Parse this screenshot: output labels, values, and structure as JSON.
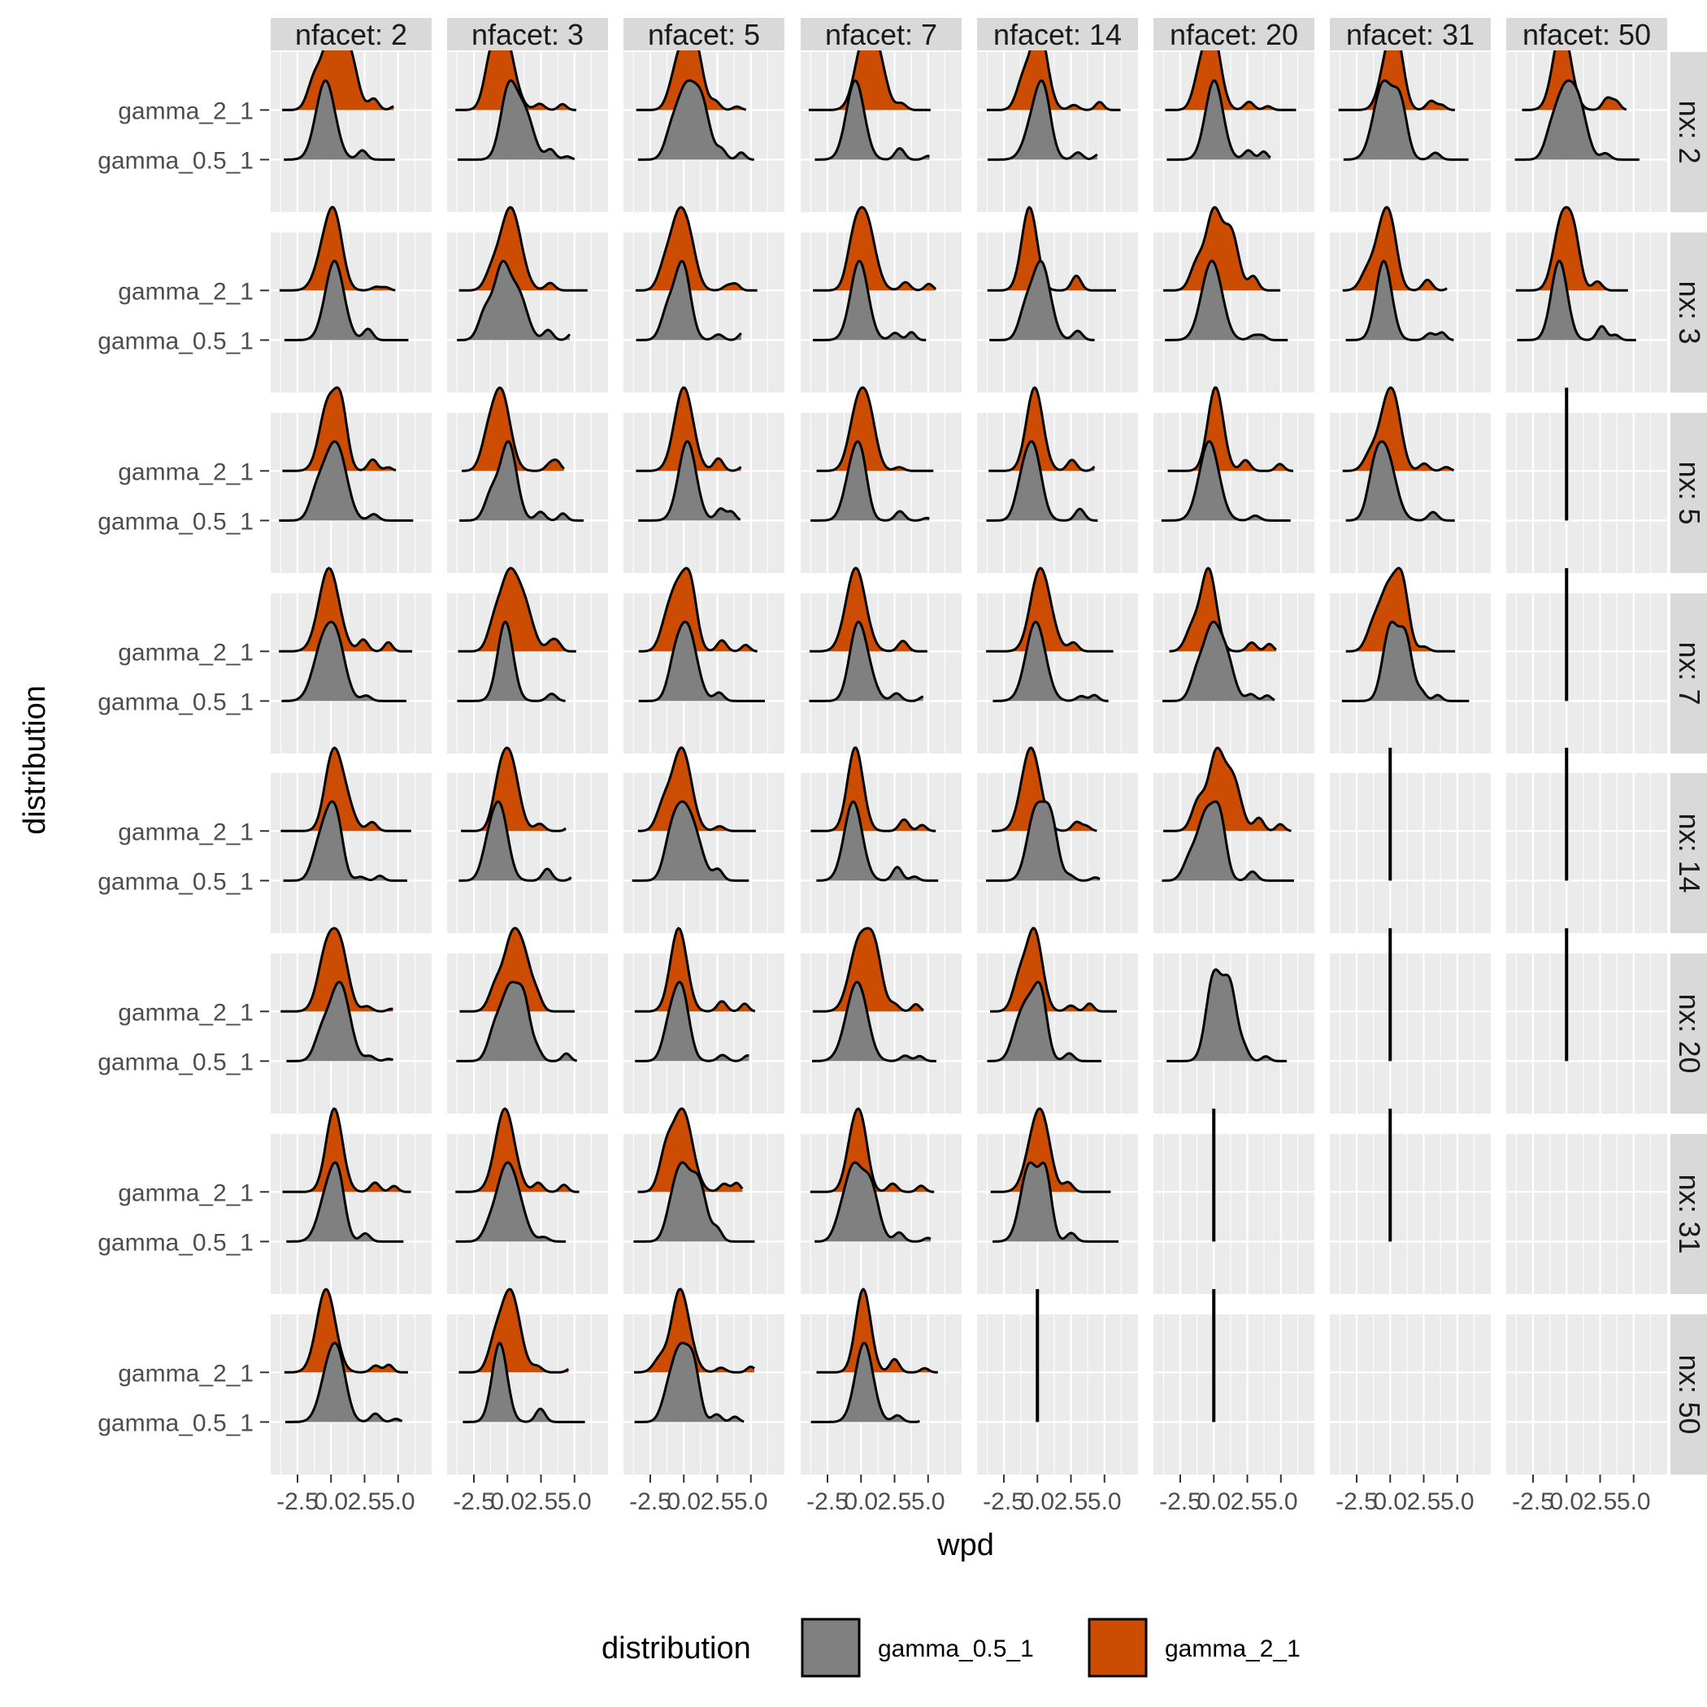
{
  "chart_data": {
    "type": "ridgeline-density-facet-grid",
    "xlabel": "wpd",
    "ylabel": "distribution",
    "x_ticks": [
      "-2.5",
      "0.0",
      "2.5",
      "5.0"
    ],
    "x_tick_values": [
      -2.5,
      0.0,
      2.5,
      5.0
    ],
    "xlim": [
      -4.5,
      7.5
    ],
    "y_categories": [
      "gamma_2_1",
      "gamma_0.5_1"
    ],
    "col_facet_labels": [
      "nfacet: 2",
      "nfacet: 3",
      "nfacet: 5",
      "nfacet: 7",
      "nfacet: 14",
      "nfacet: 20",
      "nfacet: 31",
      "nfacet: 50"
    ],
    "row_facet_labels": [
      "nx: 2",
      "nx: 3",
      "nx: 5",
      "nx: 7",
      "nx: 14",
      "nx: 20",
      "nx: 31",
      "nx: 50"
    ],
    "legend": {
      "title": "distribution",
      "position": "bottom",
      "entries": [
        {
          "label": "gamma_0.5_1",
          "color": "#808080"
        },
        {
          "label": "gamma_2_1",
          "color": "#CC4C02"
        }
      ]
    },
    "series_colors": {
      "gamma_2_1": "#CC4C02",
      "gamma_0.5_1": "#808080"
    },
    "grid": true,
    "panel_status_note_codes": {
      "F": "full density ridges",
      "L": "single-value vertical line",
      "G": "only gamma_0.5_1 density",
      "E": "empty"
    },
    "panel_status": [
      [
        "F",
        "F",
        "F",
        "F",
        "F",
        "F",
        "F",
        "F"
      ],
      [
        "F",
        "F",
        "F",
        "F",
        "F",
        "F",
        "F",
        "F"
      ],
      [
        "F",
        "F",
        "F",
        "F",
        "F",
        "F",
        "F",
        "L"
      ],
      [
        "F",
        "F",
        "F",
        "F",
        "F",
        "F",
        "F",
        "L"
      ],
      [
        "F",
        "F",
        "F",
        "F",
        "F",
        "F",
        "L",
        "L"
      ],
      [
        "F",
        "F",
        "F",
        "F",
        "F",
        "G",
        "L",
        "L"
      ],
      [
        "F",
        "F",
        "F",
        "F",
        "F",
        "L",
        "L",
        "E"
      ],
      [
        "F",
        "F",
        "F",
        "F",
        "L",
        "L",
        "E",
        "E"
      ]
    ],
    "approx_mode_wpd": 0.0
  }
}
